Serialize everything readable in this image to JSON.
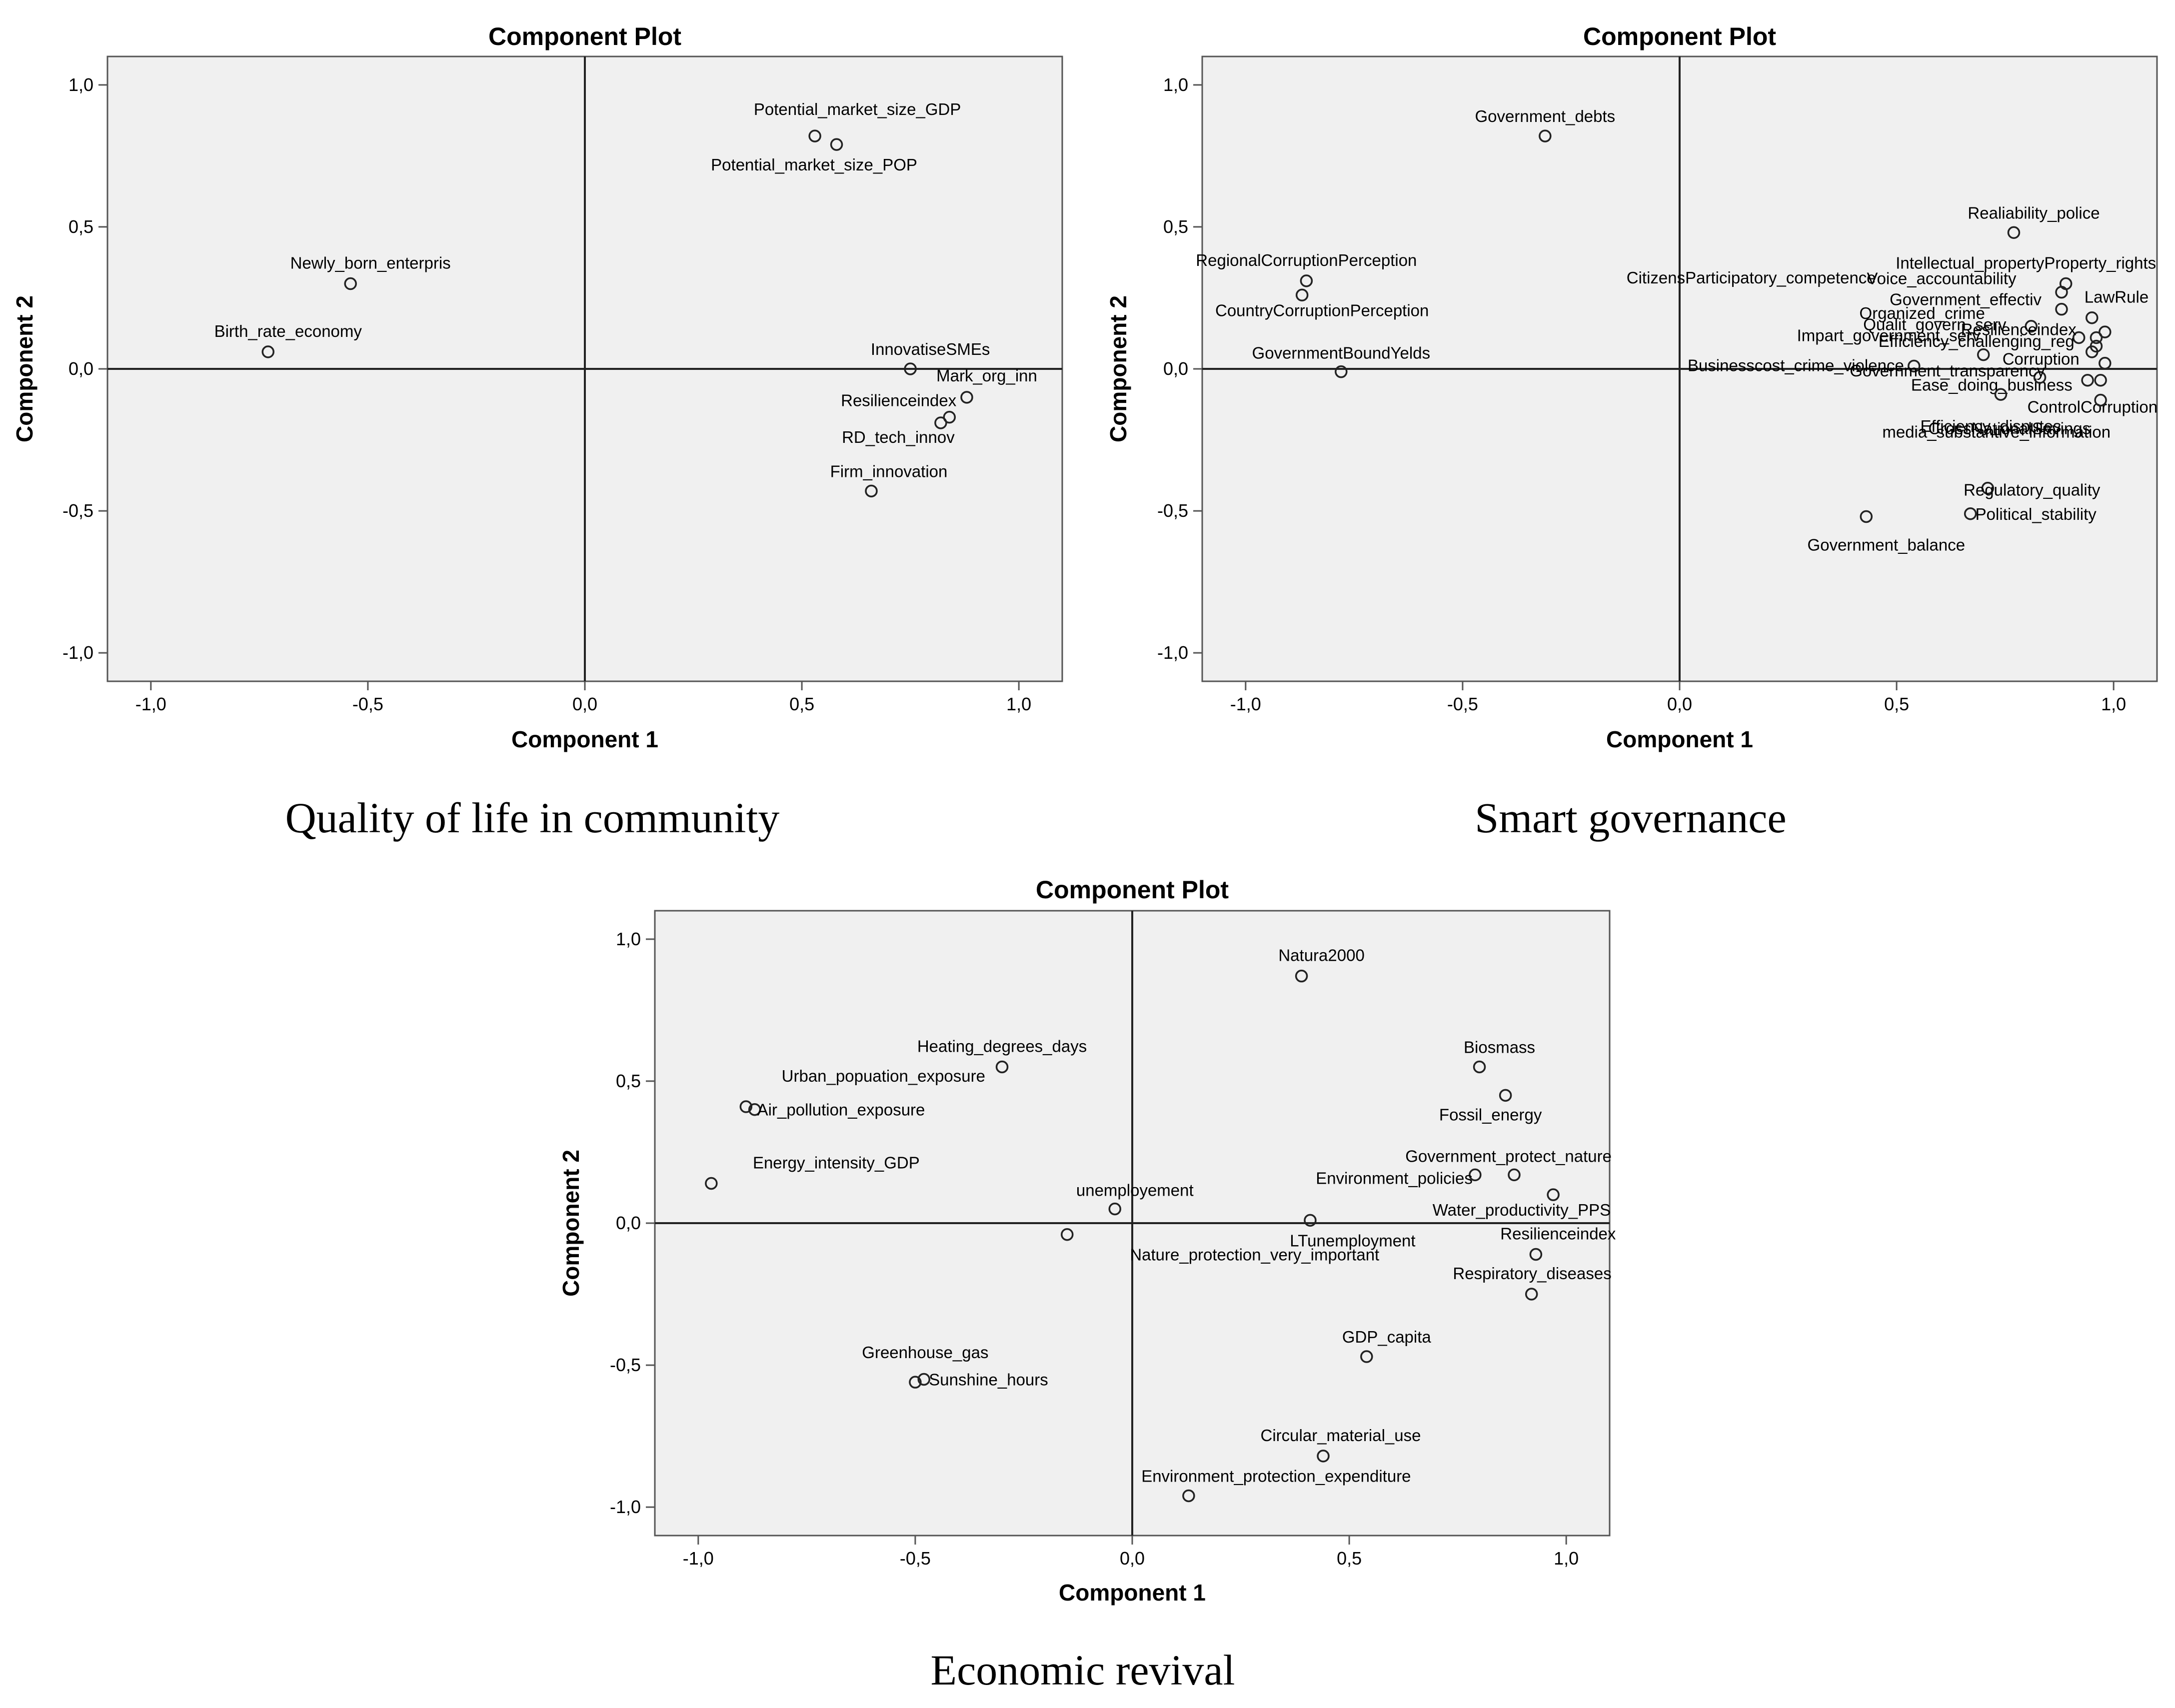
{
  "chart_data": [
    {
      "type": "scatter",
      "title": "Component Plot",
      "caption": "Quality of life in community",
      "xlabel": "Component 1",
      "ylabel": "Component 2",
      "xlim": [
        -1.1,
        1.1
      ],
      "ylim": [
        -1.1,
        1.1
      ],
      "xticks": [
        "-1,0",
        "-0,5",
        "0,0",
        "0,5",
        "1,0"
      ],
      "yticks": [
        "1,0",
        "0,5",
        "0,0",
        "-0,5",
        "-1,0"
      ],
      "points": [
        {
          "label": "Potential_market_size_GDP",
          "x": 0.53,
          "y": 0.82
        },
        {
          "label": "Potential_market_size_POP",
          "x": 0.58,
          "y": 0.79
        },
        {
          "label": "Newly_born_enterpris",
          "x": -0.54,
          "y": 0.3
        },
        {
          "label": "Birth_rate_economy",
          "x": -0.73,
          "y": 0.06
        },
        {
          "label": "InnovatiseSMEs",
          "x": 0.75,
          "y": 0.0
        },
        {
          "label": "Mark_org_inn",
          "x": 0.88,
          "y": -0.1
        },
        {
          "label": "Resilienceindex",
          "x": 0.84,
          "y": -0.17
        },
        {
          "label": "RD_tech_innov",
          "x": 0.82,
          "y": -0.19
        },
        {
          "label": "Firm_innovation",
          "x": 0.66,
          "y": -0.43
        }
      ]
    },
    {
      "type": "scatter",
      "title": "Component Plot",
      "caption": "Smart governance",
      "xlabel": "Component 1",
      "ylabel": "Component 2",
      "xlim": [
        -1.1,
        1.1
      ],
      "ylim": [
        -1.1,
        1.1
      ],
      "xticks": [
        "-1,0",
        "-0,5",
        "0,0",
        "0,5",
        "1,0"
      ],
      "yticks": [
        "1,0",
        "0,5",
        "0,0",
        "-0,5",
        "-1,0"
      ],
      "points": [
        {
          "label": "Government_debts",
          "x": -0.31,
          "y": 0.82
        },
        {
          "label": "Realiability_police",
          "x": 0.77,
          "y": 0.48
        },
        {
          "label": "RegionalCorruptionPerception",
          "x": -0.86,
          "y": 0.31
        },
        {
          "label": "CountryCorruptionPerception",
          "x": -0.87,
          "y": 0.26
        },
        {
          "label": "GovernmentBoundYelds",
          "x": -0.78,
          "y": -0.01
        },
        {
          "label": "Intellectual_propertyProperty_rights",
          "x": 0.89,
          "y": 0.3
        },
        {
          "label": "Voice_accountability",
          "x": 0.88,
          "y": 0.27
        },
        {
          "label": "Government_effectiv",
          "x": 0.88,
          "y": 0.21
        },
        {
          "label": "LawRule",
          "x": 0.95,
          "y": 0.18
        },
        {
          "label": "CitizensParticipatory_competence",
          "x": 0.81,
          "y": 0.15
        },
        {
          "label": "Organized_crime",
          "x": 0.98,
          "y": 0.13
        },
        {
          "label": "Qualit_govern_serv",
          "x": 0.96,
          "y": 0.11
        },
        {
          "label": "Resilienceindex",
          "x": 0.92,
          "y": 0.11
        },
        {
          "label": "Impart_government_serv",
          "x": 0.96,
          "y": 0.08
        },
        {
          "label": "Efficiency_challenging_reg",
          "x": 0.95,
          "y": 0.06
        },
        {
          "label": "Corruption",
          "x": 0.7,
          "y": 0.05
        },
        {
          "label": "Businesscost_crime_violence",
          "x": 0.54,
          "y": 0.01
        },
        {
          "label": "Ease_doing_business",
          "x": 0.98,
          "y": 0.02
        },
        {
          "label": "Government_transparency",
          "x": 0.83,
          "y": -0.03
        },
        {
          "label": "ControlCorruption",
          "x": 0.94,
          "y": -0.04
        },
        {
          "label": "media_substantive_information",
          "x": 0.97,
          "y": -0.04
        },
        {
          "label": "Efficiency_disputes",
          "x": 0.74,
          "y": -0.09
        },
        {
          "label": "CrossNationalSavings",
          "x": 0.97,
          "y": -0.11
        },
        {
          "label": "Regulatory_quality",
          "x": 0.71,
          "y": -0.42
        },
        {
          "label": "Political_stability",
          "x": 0.67,
          "y": -0.51
        },
        {
          "label": "Government_balance",
          "x": 0.43,
          "y": -0.52
        }
      ]
    },
    {
      "type": "scatter",
      "title": "Component Plot",
      "caption": "Economic revival",
      "xlabel": "Component 1",
      "ylabel": "Component 2",
      "xlim": [
        -1.1,
        1.1
      ],
      "ylim": [
        -1.1,
        1.1
      ],
      "xticks": [
        "-1,0",
        "-0,5",
        "0,0",
        "0,5",
        "1,0"
      ],
      "yticks": [
        "1,0",
        "0,5",
        "0,0",
        "-0,5",
        "-1,0"
      ],
      "points": [
        {
          "label": "Natura2000",
          "x": 0.39,
          "y": 0.87
        },
        {
          "label": "Heating_degrees_days",
          "x": -0.3,
          "y": 0.55
        },
        {
          "label": "Biosmass",
          "x": 0.8,
          "y": 0.55
        },
        {
          "label": "Fossil_energy",
          "x": 0.86,
          "y": 0.45
        },
        {
          "label": "Urban_popuation_exposure",
          "x": -0.89,
          "y": 0.41
        },
        {
          "label": "Air_pollution_exposure",
          "x": -0.87,
          "y": 0.4
        },
        {
          "label": "Energy_intensity_GDP",
          "x": -0.97,
          "y": 0.14
        },
        {
          "label": "Government_protect_nature",
          "x": 0.88,
          "y": 0.17
        },
        {
          "label": "Environment_policies",
          "x": 0.79,
          "y": 0.17
        },
        {
          "label": "Water_productivity_PPS",
          "x": 0.97,
          "y": 0.1
        },
        {
          "label": "unemployement",
          "x": -0.04,
          "y": 0.05
        },
        {
          "label": "LTunemployment",
          "x": 0.41,
          "y": 0.01
        },
        {
          "label": "Nature_protection_very_important",
          "x": -0.15,
          "y": -0.04
        },
        {
          "label": "Resilienceindex",
          "x": 0.93,
          "y": -0.11
        },
        {
          "label": "Respiratory_diseases",
          "x": 0.92,
          "y": -0.25
        },
        {
          "label": "GDP_capita",
          "x": 0.54,
          "y": -0.47
        },
        {
          "label": "Greenhouse_gas",
          "x": -0.5,
          "y": -0.56
        },
        {
          "label": "Sunshine_hours",
          "x": -0.48,
          "y": -0.55
        },
        {
          "label": "Circular_material_use",
          "x": 0.44,
          "y": -0.82
        },
        {
          "label": "Environment_protection_expenditure",
          "x": 0.13,
          "y": -0.96
        }
      ]
    }
  ]
}
